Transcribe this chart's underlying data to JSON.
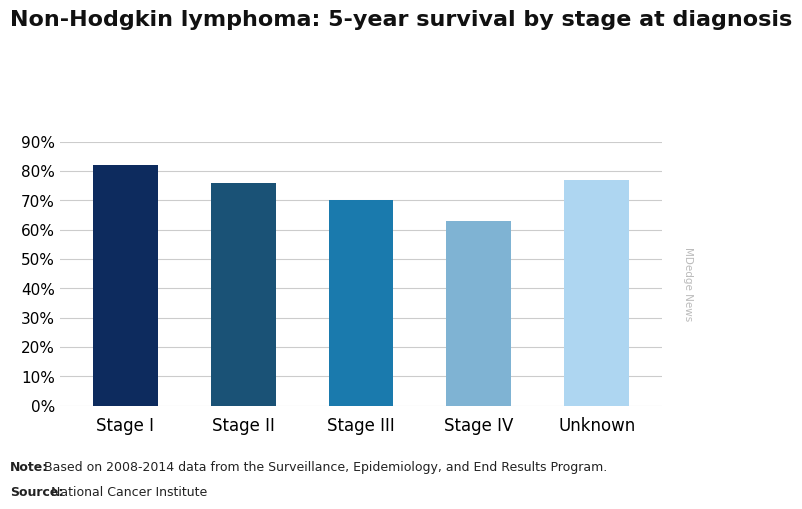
{
  "title": "Non-Hodgkin lymphoma: 5-year survival by stage at diagnosis",
  "categories": [
    "Stage I",
    "Stage II",
    "Stage III",
    "Stage IV",
    "Unknown"
  ],
  "values": [
    82,
    76,
    70,
    63,
    77
  ],
  "bar_colors": [
    "#0d2b5e",
    "#1a5276",
    "#1a7aad",
    "#7fb3d3",
    "#aed6f1"
  ],
  "ylim": [
    0,
    90
  ],
  "yticks": [
    0,
    10,
    20,
    30,
    40,
    50,
    60,
    70,
    80,
    90
  ],
  "background_color": "#ffffff",
  "title_fontsize": 16,
  "tick_fontsize": 11,
  "xlabel_fontsize": 12,
  "grid_color": "#cccccc",
  "note_bold": "Note:",
  "note_rest": " Based on 2008-2014 data from the Surveillance, Epidemiology, and End Results Program.",
  "source_bold": "Source:",
  "source_rest": " National Cancer Institute",
  "watermark": "MDedge News",
  "watermark_color": "#bbbbbb",
  "note_fontsize": 9,
  "bar_width": 0.55
}
